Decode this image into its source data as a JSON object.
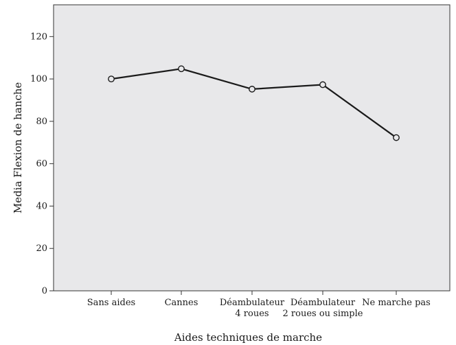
{
  "chart_data": {
    "type": "line",
    "categories": [
      [
        "Sans aides"
      ],
      [
        "Cannes"
      ],
      [
        "Déambulateur",
        "4 roues"
      ],
      [
        "Déambulateur",
        "2 roues ou simple"
      ],
      [
        "Ne marche pas"
      ]
    ],
    "values": [
      100,
      104.8,
      95.2,
      97.3,
      72.3
    ],
    "xlabel": "Aides techniques de marche",
    "ylabel": "Media Flexion de hanche",
    "ylim": [
      0,
      135
    ],
    "yticks": [
      0,
      20,
      40,
      60,
      80,
      100,
      120
    ],
    "grid": false,
    "marker": "open-circle",
    "colors": {
      "plot_background": "#e8e8ea",
      "line": "#1a1a1a"
    }
  }
}
